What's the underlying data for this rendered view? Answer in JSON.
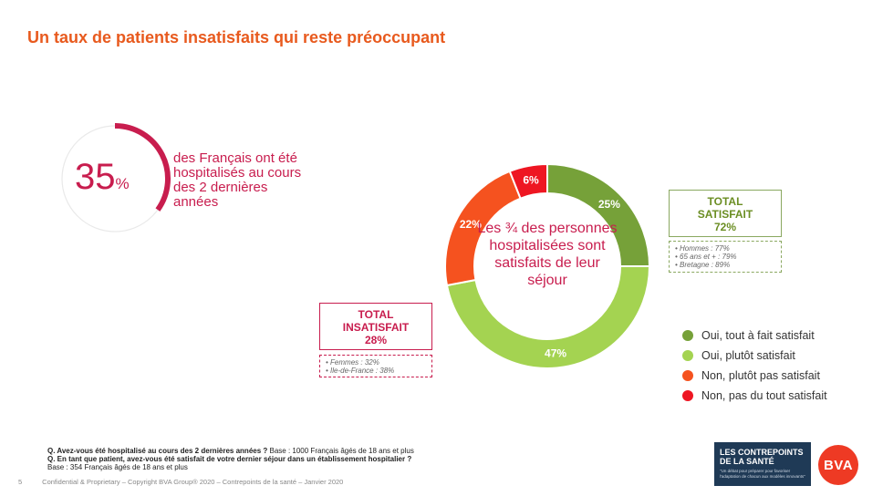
{
  "title": "Un taux de patients insatisfaits qui reste préoccupant",
  "kpi": {
    "value": "35",
    "unit": "%",
    "fraction": 0.35,
    "text": "des Français ont été hospitalisés au cours des 2 dernières années",
    "color": "#c81d4e"
  },
  "center_text": "Les ¾ des personnes hospitalisées sont satisfaits de leur séjour",
  "total_satisfait": {
    "label_line1": "TOTAL",
    "label_line2": "SATISFAIT",
    "value": "72%",
    "details": [
      "Hommes : 77%",
      "65 ans et + : 79%",
      "Bretagne : 89%"
    ]
  },
  "total_insatisfait": {
    "label_line1": "TOTAL",
    "label_line2": "INSATISFAIT",
    "value": "28%",
    "details": [
      "Femmes : 32%",
      "Ile-de-France : 38%"
    ]
  },
  "chart_data": {
    "type": "pie",
    "donut": true,
    "categories": [
      "Oui, tout à fait satisfait",
      "Oui, plutôt satisfait",
      "Non, plutôt pas satisfait",
      "Non, pas du tout satisfait"
    ],
    "values": [
      25,
      47,
      22,
      6
    ],
    "labels": [
      "25%",
      "47%",
      "22%",
      "6%"
    ],
    "colors": [
      "#76a139",
      "#a4d351",
      "#f5521f",
      "#ee1622"
    ],
    "legend_placement": "bottom-right"
  },
  "questions": {
    "q1": "Q. Avez-vous été hospitalisé au cours des 2 dernières années ?",
    "q1_base": " Base : 1000 Français âgés de 18 ans et plus",
    "q2": "Q. En tant que patient, avez-vous été satisfait de votre dernier séjour dans un établissement hospitalier ?",
    "q2_base": "Base : 354 Français âgés de 18 ans et plus"
  },
  "footer": {
    "page": "5",
    "text": "Confidential & Proprietary – Copyright BVA Group® 2020 – Contrepoints de la santé – Janvier 2020"
  },
  "logos": {
    "contrepoints_line1": "LES CONTREPOINTS",
    "contrepoints_line2": "DE LA SANTÉ",
    "contrepoints_tagline": "\"Un débat pour préparer pour favoriser l'adaptation de chacun aux modèles innovants\"",
    "bva": "BVA"
  }
}
